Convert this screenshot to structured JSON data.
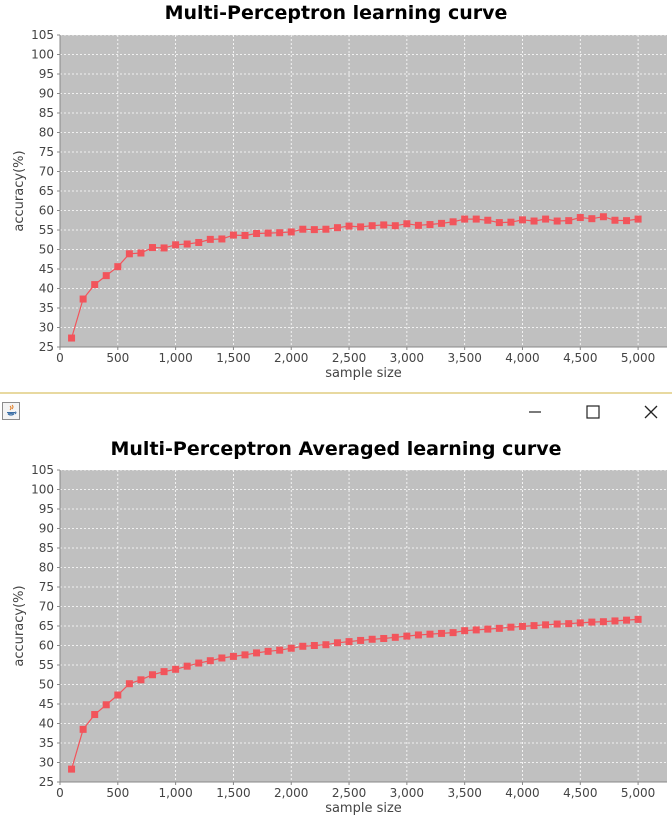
{
  "window": {
    "title": "",
    "controls": [
      "minimize",
      "maximize",
      "close"
    ],
    "icon": "java-icon"
  },
  "colors": {
    "plot_background": "#c0c0c0",
    "gridline": "#ffffff",
    "series": "#f2545b",
    "text": "#444444"
  },
  "chart_data": [
    {
      "type": "line",
      "title": "Multi-Perceptron learning curve",
      "xlabel": "sample size",
      "ylabel": "accuracy(%)",
      "xlim": [
        0,
        5250
      ],
      "ylim": [
        25,
        105
      ],
      "xticks": [
        0,
        500,
        1000,
        1500,
        2000,
        2500,
        3000,
        3500,
        4000,
        4500,
        5000
      ],
      "xtick_labels": [
        "0",
        "500",
        "1,000",
        "1,500",
        "2,000",
        "2,500",
        "3,000",
        "3,500",
        "4,000",
        "4,500",
        "5,000"
      ],
      "yticks": [
        25,
        30,
        35,
        40,
        45,
        50,
        55,
        60,
        65,
        70,
        75,
        80,
        85,
        90,
        95,
        100,
        105
      ],
      "grid": true,
      "markers": "square",
      "series": [
        {
          "x": [
            100,
            200,
            300,
            400,
            500,
            600,
            700,
            800,
            900,
            1000,
            1100,
            1200,
            1300,
            1400,
            1500,
            1600,
            1700,
            1800,
            1900,
            2000,
            2100,
            2200,
            2300,
            2400,
            2500,
            2600,
            2700,
            2800,
            2900,
            3000,
            3100,
            3200,
            3300,
            3400,
            3500,
            3600,
            3700,
            3800,
            3900,
            4000,
            4100,
            4200,
            4300,
            4400,
            4500,
            4600,
            4700,
            4800,
            4900,
            5000
          ],
          "values": [
            27.3,
            37.3,
            41.0,
            43.3,
            45.6,
            48.9,
            49.1,
            50.5,
            50.4,
            51.2,
            51.4,
            51.8,
            52.6,
            52.7,
            53.7,
            53.6,
            54.1,
            54.2,
            54.3,
            54.5,
            55.2,
            55.1,
            55.2,
            55.6,
            56.0,
            55.8,
            56.1,
            56.3,
            56.1,
            56.6,
            56.2,
            56.4,
            56.7,
            57.1,
            57.8,
            57.8,
            57.5,
            56.9,
            57.0,
            57.6,
            57.3,
            57.8,
            57.3,
            57.4,
            58.2,
            57.9,
            58.4,
            57.5,
            57.4,
            57.8
          ]
        }
      ]
    },
    {
      "type": "line",
      "title": "Multi-Perceptron Averaged learning curve",
      "xlabel": "sample size",
      "ylabel": "accuracy(%)",
      "xlim": [
        0,
        5250
      ],
      "ylim": [
        25,
        105
      ],
      "xticks": [
        0,
        500,
        1000,
        1500,
        2000,
        2500,
        3000,
        3500,
        4000,
        4500,
        5000
      ],
      "xtick_labels": [
        "0",
        "500",
        "1,000",
        "1,500",
        "2,000",
        "2,500",
        "3,000",
        "3,500",
        "4,000",
        "4,500",
        "5,000"
      ],
      "yticks": [
        25,
        30,
        35,
        40,
        45,
        50,
        55,
        60,
        65,
        70,
        75,
        80,
        85,
        90,
        95,
        100,
        105
      ],
      "grid": true,
      "markers": "square",
      "series": [
        {
          "x": [
            100,
            200,
            300,
            400,
            500,
            600,
            700,
            800,
            900,
            1000,
            1100,
            1200,
            1300,
            1400,
            1500,
            1600,
            1700,
            1800,
            1900,
            2000,
            2100,
            2200,
            2300,
            2400,
            2500,
            2600,
            2700,
            2800,
            2900,
            3000,
            3100,
            3200,
            3300,
            3400,
            3500,
            3600,
            3700,
            3800,
            3900,
            4000,
            4100,
            4200,
            4300,
            4400,
            4500,
            4600,
            4700,
            4800,
            4900,
            5000
          ],
          "values": [
            28.3,
            38.5,
            42.3,
            44.8,
            47.3,
            50.2,
            51.2,
            52.5,
            53.3,
            53.9,
            54.7,
            55.5,
            56.1,
            56.8,
            57.2,
            57.6,
            58.1,
            58.5,
            58.8,
            59.3,
            59.8,
            60.0,
            60.2,
            60.7,
            61.0,
            61.3,
            61.6,
            61.8,
            62.1,
            62.4,
            62.7,
            62.9,
            63.1,
            63.3,
            63.8,
            64.0,
            64.2,
            64.4,
            64.7,
            64.9,
            65.1,
            65.3,
            65.5,
            65.6,
            65.8,
            66.0,
            66.1,
            66.3,
            66.5,
            66.7
          ]
        }
      ]
    }
  ]
}
